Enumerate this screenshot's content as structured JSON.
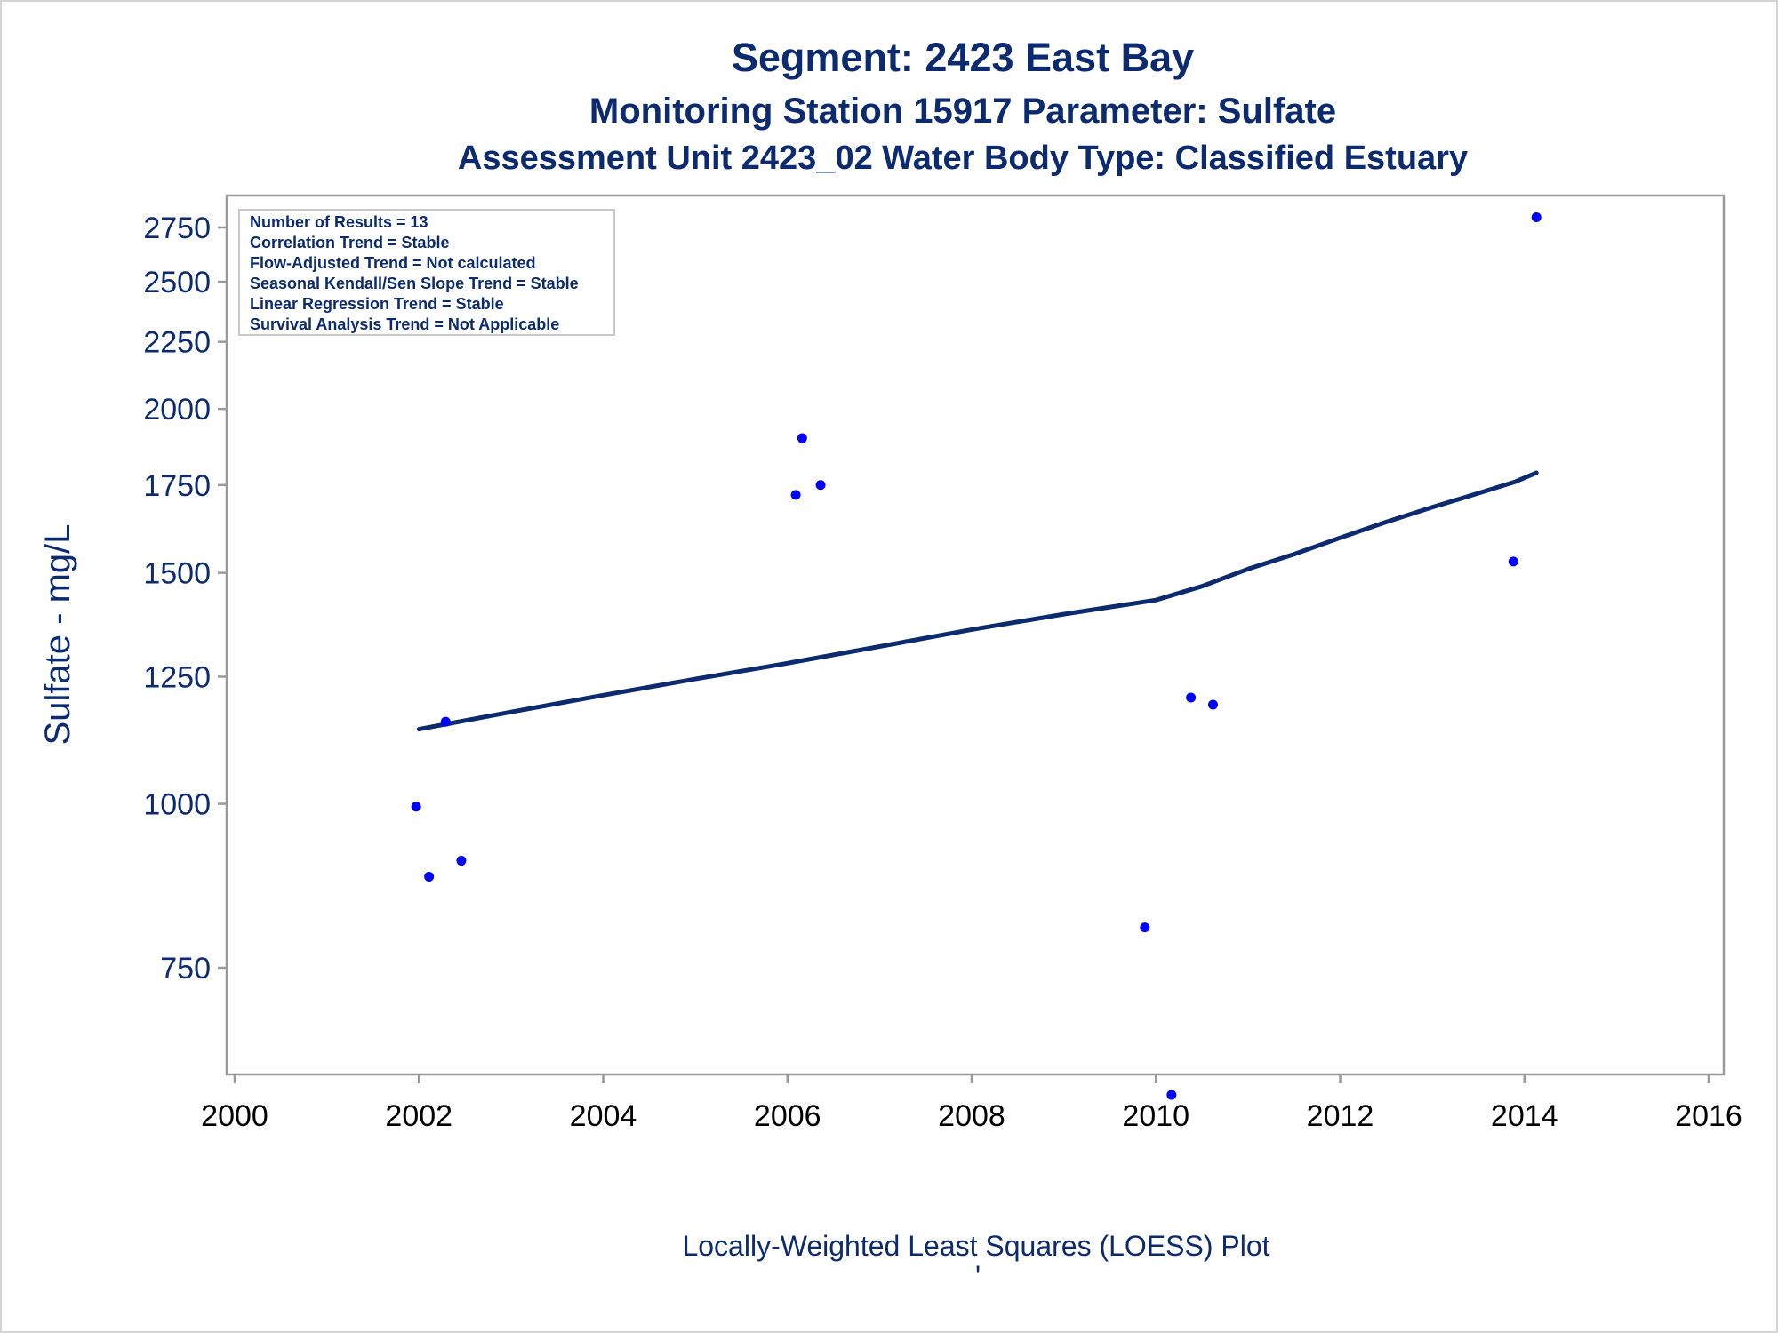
{
  "titles": {
    "line1": "Segment: 2423  East Bay",
    "line2": "Monitoring Station 15917 Parameter: Sulfate",
    "line3": "Assessment Unit 2423_02   Water Body Type: Classified Estuary"
  },
  "footnote": "Locally-Weighted Least Squares (LOESS) Plot",
  "footnote_mark": "'",
  "inset": {
    "lines": [
      "Number of Results = 13",
      "Correlation Trend = Stable",
      "Flow-Adjusted Trend = Not calculated",
      "Seasonal Kendall/Sen Slope Trend = Stable",
      "Linear Regression Trend = Stable",
      "Survival Analysis Trend = Not Applicable"
    ]
  },
  "colors": {
    "text": "#0b2a6f",
    "points": "#0000ff",
    "loess": "#0b2a6f",
    "axis": "#999999"
  },
  "chart_data": {
    "type": "scatter",
    "ylabel": "Sulfate - mg/L",
    "xlabel": "",
    "y_scale": "log",
    "xlim": [
      2000,
      2016
    ],
    "ylim": [
      590,
      2900
    ],
    "xticks": [
      2000,
      2002,
      2004,
      2006,
      2008,
      2010,
      2012,
      2014,
      2016
    ],
    "yticks": [
      750,
      1000,
      1250,
      1500,
      1750,
      2000,
      2250,
      2500,
      2750
    ],
    "xtick_labels": [
      "2000",
      "2002",
      "2004",
      "2006",
      "2008",
      "2010",
      "2012",
      "2014",
      "2016"
    ],
    "ytick_labels": [
      "750",
      "1000",
      "1250",
      "1500",
      "1750",
      "2000",
      "2250",
      "2500",
      "2750"
    ],
    "grid": false,
    "series": [
      {
        "kind": "scatter",
        "points": [
          {
            "x": 2001.97,
            "y": 995
          },
          {
            "x": 2002.11,
            "y": 880
          },
          {
            "x": 2002.29,
            "y": 1155
          },
          {
            "x": 2002.46,
            "y": 905
          },
          {
            "x": 2006.09,
            "y": 1720
          },
          {
            "x": 2006.16,
            "y": 1900
          },
          {
            "x": 2006.36,
            "y": 1750
          },
          {
            "x": 2009.88,
            "y": 805
          },
          {
            "x": 2010.17,
            "y": 600
          },
          {
            "x": 2010.38,
            "y": 1205
          },
          {
            "x": 2010.62,
            "y": 1190
          },
          {
            "x": 2013.88,
            "y": 1530
          },
          {
            "x": 2014.13,
            "y": 2800
          }
        ]
      },
      {
        "kind": "line",
        "points": [
          {
            "x": 2002.0,
            "y": 1140
          },
          {
            "x": 2003.0,
            "y": 1175
          },
          {
            "x": 2004.0,
            "y": 1210
          },
          {
            "x": 2005.0,
            "y": 1245
          },
          {
            "x": 2006.0,
            "y": 1280
          },
          {
            "x": 2007.0,
            "y": 1318
          },
          {
            "x": 2008.0,
            "y": 1358
          },
          {
            "x": 2009.0,
            "y": 1395
          },
          {
            "x": 2010.0,
            "y": 1430
          },
          {
            "x": 2010.5,
            "y": 1465
          },
          {
            "x": 2011.0,
            "y": 1510
          },
          {
            "x": 2011.5,
            "y": 1550
          },
          {
            "x": 2012.0,
            "y": 1595
          },
          {
            "x": 2012.5,
            "y": 1640
          },
          {
            "x": 2013.0,
            "y": 1683
          },
          {
            "x": 2013.5,
            "y": 1725
          },
          {
            "x": 2013.9,
            "y": 1760
          },
          {
            "x": 2014.13,
            "y": 1788
          }
        ]
      }
    ]
  }
}
